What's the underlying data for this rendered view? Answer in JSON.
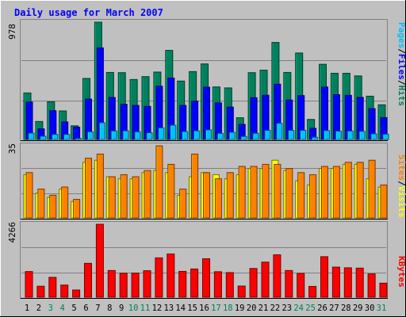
{
  "chart_data": [
    {
      "type": "bar",
      "title": "Daily usage for March 2007",
      "ylabel": "Pages / Files / Hits",
      "ylabel_parts": [
        "Pages",
        "Files",
        "Hits"
      ],
      "ymax_label": "978",
      "ylim": [
        0,
        978
      ],
      "categories": [
        "1",
        "2",
        "3",
        "4",
        "5",
        "6",
        "7",
        "8",
        "9",
        "10",
        "11",
        "12",
        "13",
        "14",
        "15",
        "16",
        "17",
        "18",
        "19",
        "20",
        "21",
        "22",
        "23",
        "24",
        "25",
        "26",
        "27",
        "28",
        "29",
        "30",
        "31"
      ],
      "weekend_days": [
        "3",
        "4",
        "10",
        "11",
        "17",
        "18",
        "24",
        "25",
        "31"
      ],
      "series": [
        {
          "name": "Hits",
          "color": "#00805c",
          "values": [
            388,
            150,
            314,
            238,
            114,
            509,
            978,
            559,
            557,
            500,
            524,
            562,
            743,
            487,
            566,
            630,
            438,
            430,
            181,
            557,
            578,
            809,
            559,
            721,
            167,
            627,
            552,
            552,
            530,
            361,
            289
          ]
        },
        {
          "name": "Files",
          "color": "#0000ff",
          "values": [
            312,
            89,
            240,
            146,
            103,
            337,
            764,
            350,
            294,
            284,
            276,
            444,
            512,
            284,
            320,
            436,
            305,
            270,
            126,
            348,
            369,
            461,
            329,
            366,
            93,
            437,
            374,
            368,
            351,
            257,
            182
          ]
        },
        {
          "name": "Pages",
          "color": "#00c0ff",
          "values": [
            53,
            27,
            42,
            42,
            9,
            64,
            140,
            71,
            72,
            64,
            56,
            97,
            119,
            66,
            72,
            80,
            51,
            60,
            25,
            51,
            76,
            135,
            76,
            76,
            18,
            74,
            69,
            70,
            68,
            47,
            44
          ]
        }
      ]
    },
    {
      "type": "bar",
      "ylabel": "Sites / Visits",
      "ylabel_parts": [
        "Sites",
        "Visits"
      ],
      "ymax_label": "35",
      "ylim": [
        0,
        35
      ],
      "categories": [
        "1",
        "2",
        "3",
        "4",
        "5",
        "6",
        "7",
        "8",
        "9",
        "10",
        "11",
        "12",
        "13",
        "14",
        "15",
        "16",
        "17",
        "18",
        "19",
        "20",
        "21",
        "22",
        "23",
        "24",
        "25",
        "26",
        "27",
        "28",
        "29",
        "30",
        "31"
      ],
      "series": [
        {
          "name": "Visits",
          "color": "#ffff00",
          "values": [
            21,
            12,
            10,
            14,
            8,
            27,
            28,
            20,
            19,
            19,
            22,
            23,
            22,
            11,
            20,
            22,
            21,
            19,
            21,
            24,
            24,
            28,
            23,
            18,
            16,
            24,
            24,
            26,
            26,
            19,
            15
          ]
        },
        {
          "name": "Sites",
          "color": "#ff8000",
          "values": [
            22,
            14,
            11,
            15,
            9,
            29,
            31,
            20,
            21,
            20,
            23,
            35,
            26,
            14,
            31,
            22,
            19,
            22,
            25,
            25,
            26,
            26,
            24,
            22,
            21,
            25,
            25,
            27,
            27,
            28,
            16
          ]
        }
      ]
    },
    {
      "type": "bar",
      "ylabel": "KBytes",
      "ylabel_parts": [
        "KBytes"
      ],
      "ymax_label": "4266",
      "ylim": [
        0,
        4266
      ],
      "categories": [
        "1",
        "2",
        "3",
        "4",
        "5",
        "6",
        "7",
        "8",
        "9",
        "10",
        "11",
        "12",
        "13",
        "14",
        "15",
        "16",
        "17",
        "18",
        "19",
        "20",
        "21",
        "22",
        "23",
        "24",
        "25",
        "26",
        "27",
        "28",
        "29",
        "30",
        "31"
      ],
      "series": [
        {
          "name": "KBytes",
          "color": "#ff0000",
          "values": [
            1500,
            640,
            1160,
            710,
            420,
            1980,
            4266,
            1560,
            1400,
            1410,
            1550,
            2300,
            2530,
            1510,
            1650,
            2250,
            1490,
            1440,
            650,
            1680,
            2050,
            2480,
            1560,
            1390,
            630,
            2370,
            1760,
            1720,
            1700,
            1360,
            820
          ]
        }
      ]
    }
  ],
  "colors": {
    "background": "#c0c0c0",
    "title": "#0000ff",
    "frame_dark": "#808080",
    "frame_light": "#ffffff",
    "grid": "#808080",
    "weekday_label": "#000000",
    "weekend_label": "#00805c",
    "separator": "#000000"
  }
}
